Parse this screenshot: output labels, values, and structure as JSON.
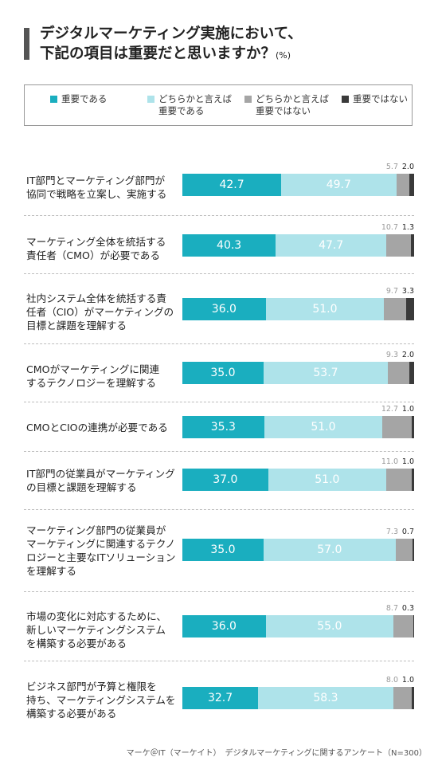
{
  "title": {
    "line1": "デジタルマーケティング実施において、",
    "line2": "下記の項目は重要だと思いますか？",
    "unit": "(%)"
  },
  "colors": {
    "seg1": "#1aaebf",
    "seg2": "#aee3ea",
    "seg3": "#a5a5a5",
    "seg4": "#3a3a3a",
    "seg1_text": "#ffffff",
    "seg2_text": "#ffffff",
    "seg3_label": "#999999",
    "seg4_label": "#222222"
  },
  "chart_data": {
    "type": "bar",
    "stacked": true,
    "orientation": "horizontal",
    "unit": "%",
    "legend": [
      "重要である",
      "どちらかと言えば\n重要である",
      "どちらかと言えば\n重要ではない",
      "重要ではない"
    ],
    "categories": [
      "IT部門とマーケティング部門が\n協同で戦略を立案し、実施する",
      "マーケティング全体を統括する\n責任者（CMO）が必要である",
      "社内システム全体を統括する責\n任者（CIO）がマーケティングの\n目標と課題を理解する",
      "CMOがマーケティングに関連\nするテクノロジーを理解する",
      "CMOとCIOの連携が必要である",
      "IT部門の従業員がマーケティング\nの目標と課題を理解する",
      "マーケティング部門の従業員が\nマーケティングに関連するテクノ\nロジーと主要なITソリューション\nを理解する",
      "市場の変化に対応するために、\n新しいマーケティングシステム\nを構築する必要がある",
      "ビジネス部門が予算と権限を\n持ち、マーケティングシステムを\n構築する必要がある"
    ],
    "series": [
      {
        "name": "重要である",
        "values": [
          42.7,
          40.3,
          36.0,
          35.0,
          35.3,
          37.0,
          35.0,
          36.0,
          32.7
        ],
        "labels": [
          "42.7",
          "40.3",
          "36.0",
          "35.0",
          "35.3",
          "37.0",
          "35.0",
          "36.0",
          "32.7"
        ]
      },
      {
        "name": "どちらかと言えば重要である",
        "values": [
          49.7,
          47.7,
          51.0,
          53.7,
          51.0,
          51.0,
          57.0,
          55.0,
          58.3
        ],
        "labels": [
          "49.7",
          "47.7",
          "51.0",
          "53.7",
          "51.0",
          "51.0",
          "57.0",
          "55.0",
          "58.3"
        ]
      },
      {
        "name": "どちらかと言えば重要ではない",
        "values": [
          5.7,
          10.7,
          9.7,
          9.3,
          12.7,
          11.0,
          7.3,
          8.7,
          8.0
        ],
        "labels": [
          "5.7",
          "10.7",
          "9.7",
          "9.3",
          "12.7",
          "11.0",
          "7.3",
          "8.7",
          "8.0"
        ]
      },
      {
        "name": "重要ではない",
        "values": [
          2.0,
          1.3,
          3.3,
          2.0,
          1.0,
          1.0,
          0.7,
          0.3,
          1.0
        ],
        "labels": [
          "2.0",
          "1.3",
          "3.3",
          "2.0",
          "1.0",
          "1.0",
          "0.7",
          "0.3",
          "1.0"
        ]
      }
    ]
  },
  "footnote": "マーケ＠IT（マーケイト）　デジタルマーケティングに関するアンケート（N=300）"
}
